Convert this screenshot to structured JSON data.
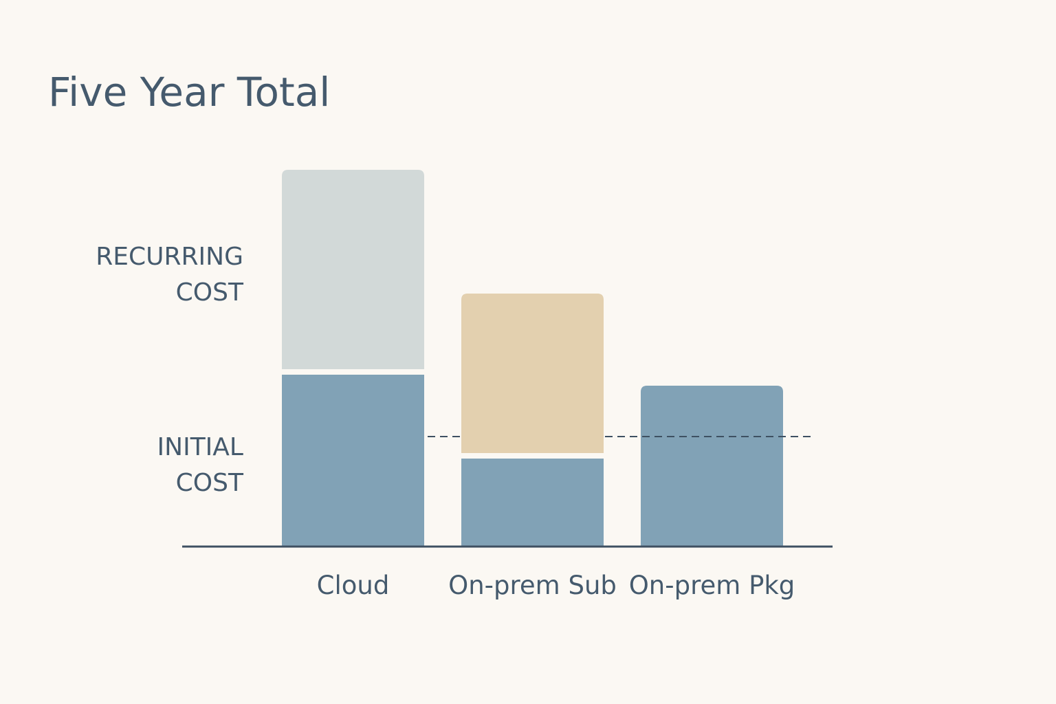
{
  "chart_data": {
    "type": "bar",
    "stacked": true,
    "title": "Five Year Total",
    "categories": [
      "Cloud",
      "On-prem Sub",
      "On-prem Pkg"
    ],
    "series": [
      {
        "key": "initial",
        "values": [
          250,
          128,
          234
        ]
      },
      {
        "key": "recurring",
        "values": [
          298,
          240,
          0
        ]
      }
    ],
    "reference_line": {
      "value": 160,
      "style": "dashed"
    },
    "axis_annotations": [
      {
        "lines": [
          "RECURRING",
          "COST"
        ],
        "value": 397
      },
      {
        "lines": [
          "INITIAL",
          "COST"
        ],
        "value": 120
      }
    ],
    "ylim": [
      0,
      560
    ],
    "grid": false,
    "colors": {
      "text": "#455a6d",
      "axis": "#3e5062",
      "background": "#fbf8f3",
      "initial": "#81a2b6",
      "recurring": [
        "#d2d9d8",
        "#e3d0af",
        "#81a2b6"
      ]
    }
  }
}
